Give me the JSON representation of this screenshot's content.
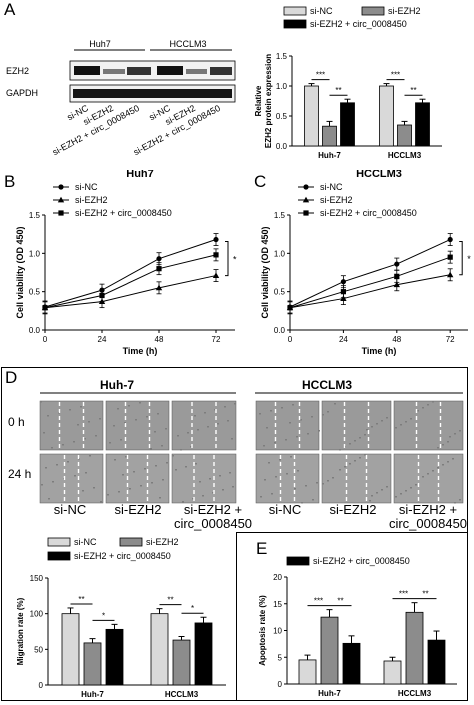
{
  "panels": {
    "A": "A",
    "B": "B",
    "C": "C",
    "D": "D",
    "E": "E"
  },
  "colors": {
    "siNC": "#d9d9d9",
    "siEZH2": "#8c8c8c",
    "rescue": "#000000"
  },
  "western": {
    "cell_lines": [
      "Huh7",
      "HCCLM3"
    ],
    "proteins": [
      "EZH2",
      "GAPDH"
    ],
    "lanes": [
      "si-NC",
      "si-EZH2",
      "si-EZH2 + circ_0008450",
      "si-NC",
      "si-EZH2",
      "si-EZH2 + circ_0008450"
    ]
  },
  "scratch": {
    "groups": [
      "Huh-7",
      "HCCLM3"
    ],
    "rows": [
      "0 h",
      "24 h"
    ],
    "conditions": [
      "si-NC",
      "si-EZH2",
      "si-EZH2 +\ncirc_0008450",
      "si-NC",
      "si-EZH2",
      "si-EZH2 +\ncirc_0008450"
    ]
  },
  "chart_data": [
    {
      "id": "A",
      "type": "bar",
      "categories": [
        "Huh-7",
        "HCCLM3"
      ],
      "series": [
        {
          "name": "si-NC",
          "values": [
            1.0,
            1.0
          ],
          "errors": [
            0.04,
            0.04
          ]
        },
        {
          "name": "si-EZH2",
          "values": [
            0.33,
            0.35
          ],
          "errors": [
            0.08,
            0.06
          ]
        },
        {
          "name": "si-EZH2 + circ_0008450",
          "values": [
            0.72,
            0.72
          ],
          "errors": [
            0.06,
            0.06
          ]
        }
      ],
      "ylabel": "Relative\nEZH2 protein expression",
      "yticks": [
        0.0,
        0.5,
        1.0,
        1.5
      ],
      "ylim": [
        0,
        1.5
      ],
      "significance": [
        "***",
        "**",
        "***",
        "**"
      ]
    },
    {
      "id": "B",
      "type": "line",
      "title": "Huh7",
      "x": [
        0,
        24,
        48,
        72
      ],
      "series": [
        {
          "name": "si-NC",
          "values": [
            0.3,
            0.52,
            0.93,
            1.18
          ]
        },
        {
          "name": "si-EZH2",
          "values": [
            0.29,
            0.37,
            0.55,
            0.71
          ]
        },
        {
          "name": "si-EZH2 + circ_0008450",
          "values": [
            0.29,
            0.45,
            0.8,
            0.98
          ]
        }
      ],
      "xlabel": "Time (h)",
      "ylabel": "Cell viability (OD 450)",
      "xticks": [
        0,
        24,
        48,
        72
      ],
      "yticks": [
        0.0,
        0.5,
        1.0,
        1.5
      ],
      "xlim": [
        0,
        80
      ],
      "ylim": [
        0,
        1.5
      ],
      "significance": "*"
    },
    {
      "id": "C",
      "type": "line",
      "title": "HCCLM3",
      "x": [
        0,
        24,
        48,
        72
      ],
      "series": [
        {
          "name": "si-NC",
          "values": [
            0.3,
            0.63,
            0.86,
            1.18
          ]
        },
        {
          "name": "si-EZH2",
          "values": [
            0.29,
            0.41,
            0.59,
            0.72
          ]
        },
        {
          "name": "si-EZH2 + circ_0008450",
          "values": [
            0.29,
            0.5,
            0.7,
            0.95
          ]
        }
      ],
      "xlabel": "Time (h)",
      "ylabel": "Cell viability (OD 450)",
      "xticks": [
        0,
        24,
        48,
        72
      ],
      "yticks": [
        0.0,
        0.5,
        1.0,
        1.5
      ],
      "xlim": [
        0,
        80
      ],
      "ylim": [
        0,
        1.5
      ],
      "significance": "*"
    },
    {
      "id": "D",
      "type": "bar",
      "categories": [
        "Huh-7",
        "HCCLM3"
      ],
      "series": [
        {
          "name": "si-NC",
          "values": [
            100,
            100
          ],
          "errors": [
            8,
            7
          ]
        },
        {
          "name": "si-EZH2",
          "values": [
            59,
            63
          ],
          "errors": [
            6,
            5
          ]
        },
        {
          "name": "si-EZH2 + circ_0008450",
          "values": [
            78,
            87
          ],
          "errors": [
            7,
            8
          ]
        }
      ],
      "ylabel": "Migration rate (%)",
      "yticks": [
        0,
        50,
        100,
        150
      ],
      "ylim": [
        0,
        150
      ],
      "significance": [
        "**",
        "*",
        "**",
        "*"
      ]
    },
    {
      "id": "E",
      "type": "bar",
      "categories": [
        "Huh-7",
        "HCCLM3"
      ],
      "series": [
        {
          "name": "si-NC",
          "values": [
            4.5,
            4.3
          ],
          "errors": [
            0.9,
            0.7
          ]
        },
        {
          "name": "si-EZH2",
          "values": [
            12.5,
            13.4
          ],
          "errors": [
            1.4,
            1.8
          ]
        },
        {
          "name": "si-EZH2 + circ_0008450",
          "values": [
            7.6,
            8.2
          ],
          "errors": [
            1.4,
            1.7
          ]
        }
      ],
      "ylabel": "Apoptosis rate (%)",
      "yticks": [
        0,
        5,
        10,
        15,
        20
      ],
      "ylim": [
        0,
        20
      ],
      "significance": [
        "***",
        "**",
        "***",
        "**"
      ]
    }
  ]
}
